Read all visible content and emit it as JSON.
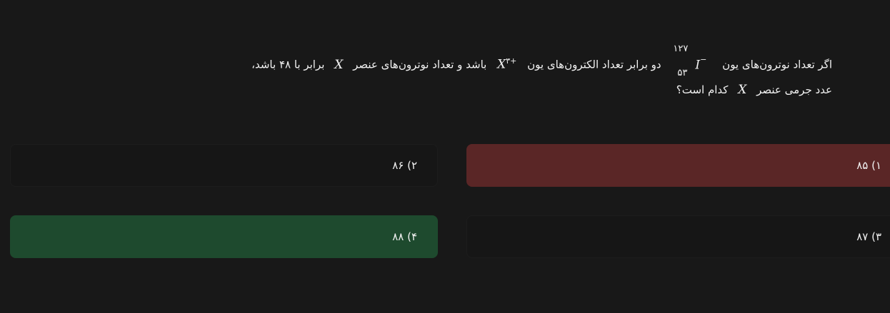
{
  "question": {
    "line1": {
      "part1": "اگر تعداد نوترون‌های یون",
      "iodine": {
        "mass_number": "۱۲۷",
        "atomic_number": "۵۳",
        "symbol": "I",
        "charge": "−"
      },
      "part2": "دو برابر تعداد الکترون‌های یون",
      "x_ion": {
        "symbol": "X",
        "charge": "۳+"
      },
      "part3": "باشد و تعداد نوترون‌های عنصر",
      "x_symbol": "X",
      "part4": "برابر با ۴۸ باشد،"
    },
    "line2": {
      "part1": "عدد جرمی عنصر",
      "x_symbol": "X",
      "part2": "کدام است؟"
    }
  },
  "options": [
    {
      "label": "۱) ۸۵",
      "state": "incorrect-selected",
      "color": "#5a2626"
    },
    {
      "label": "۲) ۸۶",
      "state": "neutral"
    },
    {
      "label": "۳) ۸۷",
      "state": "neutral"
    },
    {
      "label": "۴) ۸۸",
      "state": "correct",
      "color": "#1e4a2e"
    }
  ]
}
